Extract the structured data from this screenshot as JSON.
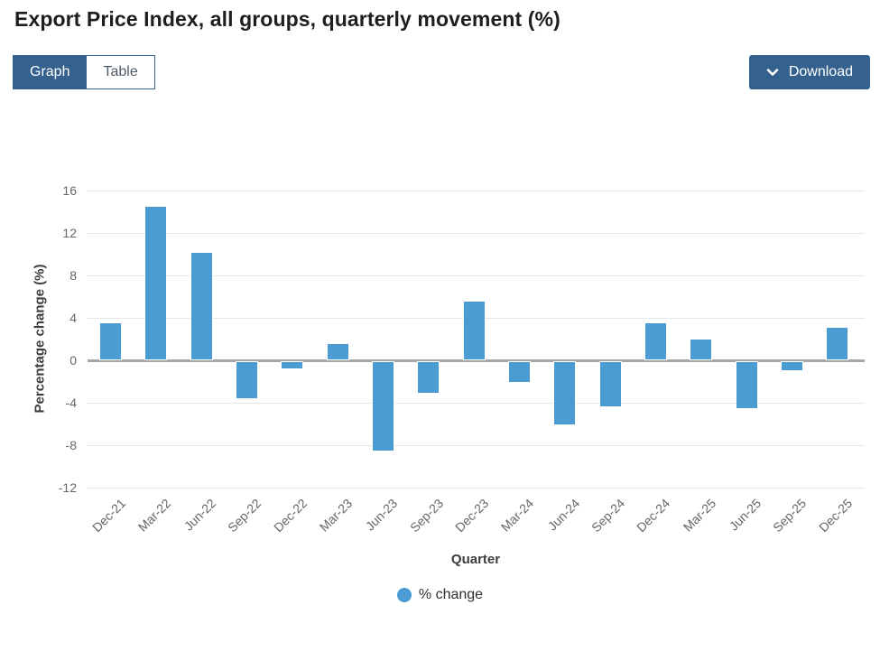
{
  "page": {
    "title": "Export Price Index, all groups, quarterly movement (%)"
  },
  "toolbar": {
    "graph_tab": "Graph",
    "table_tab": "Table",
    "download": "Download"
  },
  "colors": {
    "accent_blue": "#35618f",
    "bar_blue": "#4a9cd3",
    "gridline": "#e6e6e6",
    "zero_line": "#a6a6a6",
    "axis_text": "#666666"
  },
  "chart_data": {
    "type": "bar",
    "title": "Export Price Index, all groups, quarterly movement (%)",
    "categories": [
      "Dec-21",
      "Mar-22",
      "Jun-22",
      "Sep-22",
      "Dec-22",
      "Mar-23",
      "Jun-23",
      "Sep-23",
      "Dec-23",
      "Mar-24",
      "Jun-24",
      "Sep-24",
      "Dec-24",
      "Mar-25",
      "Jun-25",
      "Sep-25",
      "Dec-25"
    ],
    "values": [
      3.5,
      14.5,
      10.1,
      -3.6,
      -0.8,
      1.5,
      -8.5,
      -3.1,
      5.5,
      -2.0,
      -6.0,
      -4.3,
      3.5,
      2.0,
      -4.5,
      -0.9,
      3.1
    ],
    "series_name": "% change",
    "xlabel": "Quarter",
    "ylabel": "Percentage change (%)",
    "yticks": [
      16,
      12,
      8,
      4,
      0,
      -4,
      -8,
      -12
    ],
    "ylim": [
      -12,
      16
    ],
    "grid": true,
    "legend_position": "bottom",
    "bar_color": "#4a9cd3"
  }
}
